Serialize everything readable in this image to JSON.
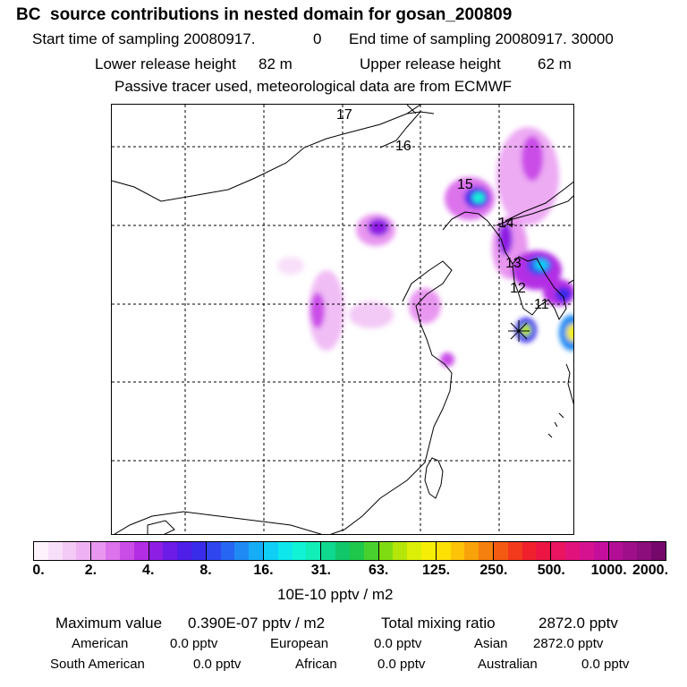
{
  "header": {
    "title": "BC  source contributions in nested domain for gosan_200809",
    "start_label": "Start time of sampling 20080917.",
    "start_value": "0",
    "end_label": "End time of sampling 20080917. 30000",
    "lower_label": "Lower release height",
    "lower_value": "82 m",
    "upper_label": "Upper release height",
    "upper_value": "62 m",
    "note": "Passive tracer used, meteorological data are from ECMWF"
  },
  "map": {
    "day_labels": [
      "17",
      "16",
      "15",
      "14",
      "13",
      "12",
      "11"
    ]
  },
  "colorbar": {
    "ticks": [
      "0.",
      "2.",
      "4.",
      "8.",
      "16.",
      "31.",
      "63.",
      "125.",
      "250.",
      "500.",
      "1000.",
      "2000."
    ],
    "units": "10E-10 pptv / m2",
    "colors": [
      "#fdf3fd",
      "#f8dff9",
      "#f3c9f6",
      "#eeb2f3",
      "#e896f0",
      "#dc72ec",
      "#cb4de8",
      "#b32de4",
      "#8e1ee4",
      "#6d1be6",
      "#4f1ee8",
      "#3a2ceb",
      "#2f46ef",
      "#2766f2",
      "#1f8af4",
      "#15adf6",
      "#0fcff6",
      "#0ee7ec",
      "#10f3d5",
      "#12eeb7",
      "#0fd98f",
      "#10c86a",
      "#1ec84a",
      "#48d12c",
      "#7fdc10",
      "#b5e60a",
      "#dcef07",
      "#f6ee06",
      "#fde105",
      "#fcc307",
      "#f9a20a",
      "#f6800d",
      "#f45a12",
      "#f33a1d",
      "#f1202d",
      "#ed1643",
      "#ea1460",
      "#e2127c",
      "#d61291",
      "#c50f9c",
      "#b30f96",
      "#a00f8a",
      "#8c0d7c",
      "#76086c"
    ]
  },
  "stats": {
    "max_label": "Maximum value",
    "max_value": "0.390E-07 pptv / m2",
    "total_label": "Total mixing ratio",
    "total_value": "2872.0 pptv"
  },
  "regions": {
    "american_label": "American",
    "american_value": "0.0 pptv",
    "european_label": "European",
    "european_value": "0.0 pptv",
    "asian_label": "Asian",
    "asian_value": "2872.0 pptv",
    "south_american_label": "South American",
    "south_american_value": "0.0 pptv",
    "african_label": "African",
    "african_value": "0.0 pptv",
    "australian_label": "Australian",
    "australian_value": "0.0 pptv"
  }
}
